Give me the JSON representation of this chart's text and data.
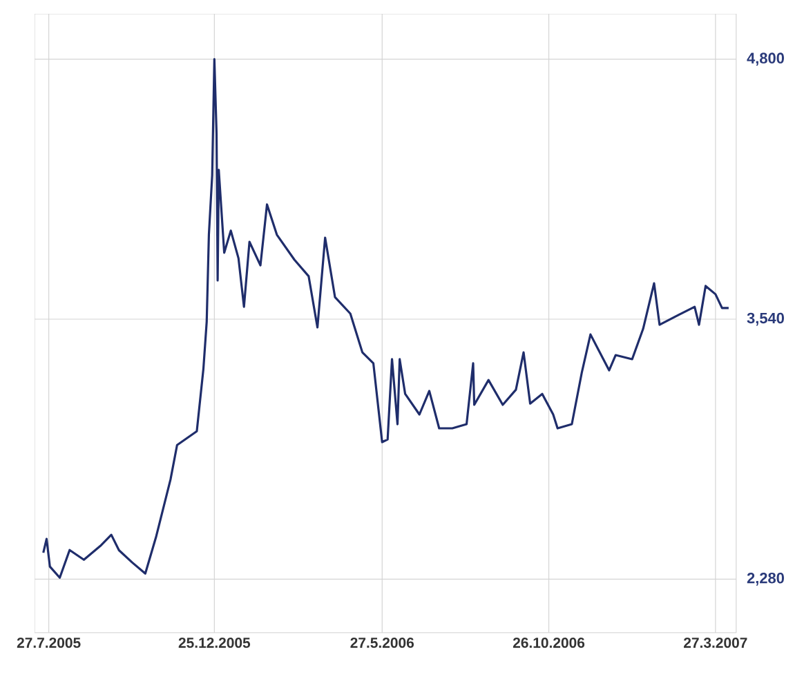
{
  "chart_data": {
    "type": "line",
    "x": [
      "2005-07-22",
      "2005-07-25",
      "2005-07-28",
      "2005-08-06",
      "2005-08-15",
      "2005-08-28",
      "2005-09-12",
      "2005-09-22",
      "2005-09-29",
      "2005-10-11",
      "2005-10-23",
      "2005-11-02",
      "2005-11-15",
      "2005-11-21",
      "2005-12-09",
      "2005-12-15",
      "2005-12-18",
      "2005-12-20",
      "2005-12-23",
      "2005-12-25",
      "2005-12-27",
      "2005-12-28",
      "2005-12-29",
      "2006-01-03",
      "2006-01-09",
      "2006-01-16",
      "2006-01-21",
      "2006-01-26",
      "2006-02-05",
      "2006-02-11",
      "2006-02-20",
      "2006-03-08",
      "2006-03-21",
      "2006-03-29",
      "2006-04-05",
      "2006-04-14",
      "2006-04-28",
      "2006-05-09",
      "2006-05-19",
      "2006-05-27",
      "2006-06-01",
      "2006-06-05",
      "2006-06-10",
      "2006-06-12",
      "2006-06-17",
      "2006-06-30",
      "2006-07-09",
      "2006-07-18",
      "2006-07-30",
      "2006-08-12",
      "2006-08-18",
      "2006-08-19",
      "2006-09-01",
      "2006-09-14",
      "2006-09-26",
      "2006-10-03",
      "2006-10-09",
      "2006-10-20",
      "2006-10-30",
      "2006-11-03",
      "2006-11-16",
      "2006-11-25",
      "2006-12-03",
      "2006-12-20",
      "2006-12-26",
      "2007-01-10",
      "2007-01-20",
      "2007-01-30",
      "2007-02-04",
      "2007-02-21",
      "2007-03-08",
      "2007-03-12",
      "2007-03-18",
      "2007-03-27",
      "2007-04-02",
      "2007-04-08"
    ],
    "series": [
      {
        "color": "#1f2d6b",
        "values": [
          2408,
          2475,
          2341,
          2287,
          2421,
          2374,
          2441,
          2495,
          2420,
          2361,
          2307,
          2488,
          2763,
          2930,
          2997,
          3299,
          3527,
          3949,
          4237,
          4800,
          4438,
          3728,
          4264,
          3862,
          3969,
          3835,
          3600,
          3915,
          3801,
          4096,
          3949,
          3828,
          3748,
          3500,
          3935,
          3647,
          3567,
          3379,
          3326,
          2944,
          2957,
          3346,
          3031,
          3346,
          3178,
          3078,
          3192,
          3011,
          3011,
          3031,
          3326,
          3125,
          3245,
          3125,
          3198,
          3379,
          3131,
          3178,
          3078,
          3011,
          3031,
          3279,
          3466,
          3292,
          3366,
          3346,
          3493,
          3714,
          3513,
          3560,
          3600,
          3513,
          3701,
          3661,
          3594,
          3594
        ]
      }
    ],
    "xlim": [
      "2005-07-14",
      "2007-04-15"
    ],
    "xticks": [
      {
        "value": "2005-07-27",
        "label": "27.7.2005"
      },
      {
        "value": "2005-12-25",
        "label": "25.12.2005"
      },
      {
        "value": "2006-05-27",
        "label": "27.5.2006"
      },
      {
        "value": "2006-10-26",
        "label": "26.10.2006"
      },
      {
        "value": "2007-03-27",
        "label": "27.3.2007"
      }
    ],
    "ylim": [
      2020,
      5020
    ],
    "yticks": [
      {
        "value": 2280,
        "label": "2,280"
      },
      {
        "value": 3540,
        "label": "3,540"
      },
      {
        "value": 4800,
        "label": "4,800"
      }
    ],
    "grid": true,
    "marker": "none",
    "line_style": "solid"
  }
}
